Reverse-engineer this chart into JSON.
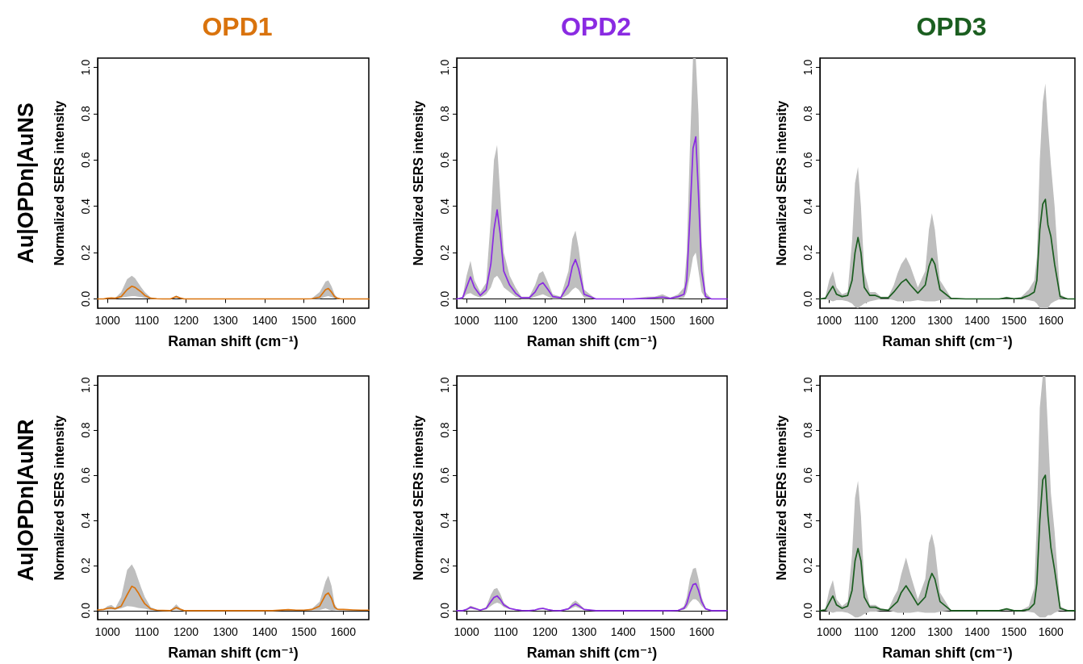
{
  "chart_data": [
    {
      "type": "line",
      "title": "OPD1",
      "xlabel": "Raman shift (cm⁻¹)",
      "ylabel": "Normalized SERS intensity",
      "annotations": [
        "Au|OPDn|AuNS"
      ],
      "xlim": [
        975,
        1665
      ],
      "ylim": [
        -0.04,
        1.04
      ],
      "xticks": [
        1000,
        1100,
        1200,
        1300,
        1400,
        1500,
        1600
      ],
      "yticks": [
        {
          "value": 0,
          "label": "0.0"
        },
        {
          "value": 0.2,
          "label": "0.2"
        },
        {
          "value": 0.4,
          "label": "0.4"
        },
        {
          "value": 0.6,
          "label": "0.6"
        },
        {
          "value": 0.8,
          "label": "0.8"
        },
        {
          "value": 1,
          "label": "1.0"
        }
      ],
      "x": [
        975,
        990,
        1000,
        1010,
        1020,
        1035,
        1050,
        1062,
        1070,
        1078,
        1086,
        1095,
        1110,
        1125,
        1140,
        1160,
        1175,
        1185,
        1195,
        1208,
        1220,
        1240,
        1260,
        1270,
        1278,
        1286,
        1300,
        1330,
        1370,
        1420,
        1460,
        1480,
        1500,
        1520,
        1540,
        1555,
        1562,
        1570,
        1578,
        1585,
        1592,
        1600,
        1610,
        1625,
        1645,
        1665
      ],
      "series": [
        {
          "color": "#d9730d",
          "values": [
            0,
            0,
            0.003,
            0.004,
            0.003,
            0.01,
            0.04,
            0.055,
            0.05,
            0.04,
            0.03,
            0.015,
            0.003,
            0.001,
            0,
            0,
            0.01,
            0.004,
            0,
            0,
            0,
            0,
            0,
            0,
            0,
            0,
            0,
            0,
            0,
            0,
            0,
            0,
            0,
            0.001,
            0.008,
            0.04,
            0.045,
            0.03,
            0.01,
            0.003,
            0.001,
            0,
            0,
            0,
            0,
            0
          ],
          "upper": [
            0,
            0,
            0.004,
            0.006,
            0.004,
            0.03,
            0.085,
            0.1,
            0.09,
            0.07,
            0.05,
            0.03,
            0.006,
            0.002,
            0,
            0,
            0.015,
            0.006,
            0.001,
            0,
            0,
            0,
            0,
            0,
            0,
            0,
            0,
            0,
            0,
            0,
            0,
            0,
            0,
            0.003,
            0.03,
            0.075,
            0.08,
            0.055,
            0.02,
            0.005,
            0.002,
            0,
            0,
            0,
            0,
            0
          ],
          "lower": [
            0,
            0,
            0.002,
            0.002,
            0.002,
            0.005,
            0.01,
            0.012,
            0.012,
            0.01,
            0.008,
            0.004,
            0,
            0,
            0,
            0,
            0.005,
            0.002,
            0,
            0,
            0,
            0,
            0,
            0,
            0,
            0,
            0,
            0,
            0,
            0,
            0,
            0,
            0,
            0,
            0,
            0.01,
            0.012,
            0.008,
            0.003,
            0,
            0,
            0,
            0,
            0,
            0,
            0
          ]
        }
      ]
    },
    {
      "type": "line",
      "title": "OPD2",
      "xlabel": "Raman shift (cm⁻¹)",
      "ylabel": "Normalized SERS intensity",
      "xlim": [
        975,
        1665
      ],
      "ylim": [
        -0.04,
        1.04
      ],
      "xticks": [
        1000,
        1100,
        1200,
        1300,
        1400,
        1500,
        1600
      ],
      "yticks": [
        {
          "value": 0,
          "label": "0.0"
        },
        {
          "value": 0.2,
          "label": "0.2"
        },
        {
          "value": 0.4,
          "label": "0.4"
        },
        {
          "value": 0.6,
          "label": "0.6"
        },
        {
          "value": 0.8,
          "label": "0.8"
        },
        {
          "value": 1,
          "label": "1.0"
        }
      ],
      "x": [
        975,
        990,
        1000,
        1010,
        1020,
        1035,
        1050,
        1062,
        1070,
        1078,
        1086,
        1095,
        1110,
        1125,
        1140,
        1160,
        1175,
        1185,
        1195,
        1208,
        1220,
        1240,
        1260,
        1270,
        1278,
        1286,
        1300,
        1330,
        1370,
        1420,
        1460,
        1480,
        1500,
        1520,
        1540,
        1555,
        1562,
        1570,
        1578,
        1585,
        1592,
        1600,
        1610,
        1625,
        1645,
        1665
      ],
      "series": [
        {
          "color": "#8a2be2",
          "values": [
            0,
            0.005,
            0.05,
            0.095,
            0.05,
            0.015,
            0.04,
            0.15,
            0.3,
            0.385,
            0.28,
            0.12,
            0.06,
            0.025,
            0.005,
            0.005,
            0.03,
            0.06,
            0.07,
            0.04,
            0.01,
            0.005,
            0.06,
            0.14,
            0.17,
            0.13,
            0.02,
            0,
            0,
            0,
            0.002,
            0.005,
            0.008,
            0.002,
            0.01,
            0.02,
            0.08,
            0.35,
            0.65,
            0.7,
            0.45,
            0.12,
            0.01,
            0,
            0,
            0
          ],
          "upper": [
            0,
            0.01,
            0.1,
            0.165,
            0.08,
            0.03,
            0.07,
            0.35,
            0.6,
            0.665,
            0.45,
            0.2,
            0.1,
            0.05,
            0.01,
            0.01,
            0.06,
            0.11,
            0.12,
            0.07,
            0.02,
            0.01,
            0.12,
            0.26,
            0.295,
            0.22,
            0.04,
            0,
            0,
            0,
            0.01,
            0.01,
            0.02,
            0.005,
            0.02,
            0.05,
            0.2,
            0.65,
            1.04,
            1.04,
            0.8,
            0.25,
            0.03,
            0,
            0,
            0
          ],
          "lower": [
            0,
            0,
            0.02,
            0.025,
            0.015,
            0.005,
            0.02,
            0.05,
            0.09,
            0.1,
            0.08,
            0.05,
            0.03,
            0.01,
            0,
            0,
            0.01,
            0.015,
            0.02,
            0.01,
            0,
            0,
            0.02,
            0.04,
            0.05,
            0.04,
            0.005,
            0,
            0,
            0,
            0,
            0,
            0,
            0,
            0,
            0.005,
            0.03,
            0.1,
            0.18,
            0.2,
            0.12,
            0.03,
            0.003,
            0,
            0,
            0
          ]
        }
      ]
    },
    {
      "type": "line",
      "title": "OPD3",
      "xlabel": "Raman shift (cm⁻¹)",
      "ylabel": "Normalized SERS intensity",
      "xlim": [
        975,
        1665
      ],
      "ylim": [
        -0.04,
        1.04
      ],
      "xticks": [
        1000,
        1100,
        1200,
        1300,
        1400,
        1500,
        1600
      ],
      "yticks": [
        {
          "value": 0,
          "label": "0.0"
        },
        {
          "value": 0.2,
          "label": "0.2"
        },
        {
          "value": 0.4,
          "label": "0.4"
        },
        {
          "value": 0.6,
          "label": "0.6"
        },
        {
          "value": 0.8,
          "label": "0.8"
        },
        {
          "value": 1,
          "label": "1.0"
        }
      ],
      "x": [
        975,
        990,
        1000,
        1010,
        1020,
        1035,
        1050,
        1062,
        1070,
        1078,
        1086,
        1095,
        1110,
        1125,
        1140,
        1160,
        1175,
        1185,
        1195,
        1208,
        1220,
        1240,
        1260,
        1270,
        1278,
        1286,
        1300,
        1330,
        1370,
        1420,
        1460,
        1480,
        1500,
        1520,
        1540,
        1555,
        1562,
        1570,
        1578,
        1585,
        1592,
        1600,
        1610,
        1625,
        1645,
        1665
      ],
      "series": [
        {
          "color": "#1b5e20",
          "values": [
            0,
            0.003,
            0.03,
            0.055,
            0.02,
            0.01,
            0.015,
            0.08,
            0.2,
            0.265,
            0.2,
            0.05,
            0.015,
            0.015,
            0.005,
            0.005,
            0.03,
            0.05,
            0.07,
            0.085,
            0.06,
            0.025,
            0.06,
            0.14,
            0.175,
            0.15,
            0.04,
            0.002,
            0,
            0,
            0,
            0.005,
            0.001,
            0.003,
            0.015,
            0.03,
            0.08,
            0.3,
            0.41,
            0.43,
            0.32,
            0.27,
            0.15,
            0.01,
            0,
            0
          ],
          "upper": [
            0,
            0.01,
            0.08,
            0.12,
            0.05,
            0.02,
            0.03,
            0.25,
            0.5,
            0.57,
            0.4,
            0.12,
            0.03,
            0.03,
            0.01,
            0.01,
            0.06,
            0.11,
            0.15,
            0.18,
            0.14,
            0.05,
            0.12,
            0.3,
            0.37,
            0.3,
            0.08,
            0.005,
            0,
            0,
            0,
            0.01,
            0.002,
            0.01,
            0.04,
            0.08,
            0.18,
            0.6,
            0.85,
            0.93,
            0.75,
            0.58,
            0.4,
            0.02,
            0,
            0
          ],
          "lower": [
            0,
            0,
            -0.005,
            -0.01,
            -0.005,
            -0.005,
            -0.01,
            -0.02,
            -0.035,
            -0.04,
            -0.03,
            -0.02,
            -0.01,
            -0.005,
            0,
            0,
            -0.005,
            -0.01,
            -0.01,
            -0.01,
            -0.01,
            -0.005,
            -0.01,
            -0.01,
            -0.01,
            -0.01,
            -0.005,
            0,
            0,
            0,
            0,
            0,
            0,
            0,
            -0.005,
            -0.01,
            -0.02,
            -0.04,
            -0.04,
            -0.04,
            -0.04,
            -0.02,
            -0.01,
            0,
            0,
            0
          ]
        }
      ]
    },
    {
      "type": "line",
      "xlabel": "Raman shift (cm⁻¹)",
      "ylabel": "Normalized SERS intensity",
      "annotations": [
        "Au|OPDn|AuNR"
      ],
      "xlim": [
        975,
        1665
      ],
      "ylim": [
        -0.04,
        1.04
      ],
      "xticks": [
        1000,
        1100,
        1200,
        1300,
        1400,
        1500,
        1600
      ],
      "yticks": [
        {
          "value": 0,
          "label": "0.0"
        },
        {
          "value": 0.2,
          "label": "0.2"
        },
        {
          "value": 0.4,
          "label": "0.4"
        },
        {
          "value": 0.6,
          "label": "0.6"
        },
        {
          "value": 0.8,
          "label": "0.8"
        },
        {
          "value": 1,
          "label": "1.0"
        }
      ],
      "x": [
        975,
        990,
        1000,
        1010,
        1020,
        1035,
        1050,
        1062,
        1070,
        1078,
        1086,
        1095,
        1110,
        1125,
        1140,
        1160,
        1175,
        1185,
        1195,
        1208,
        1220,
        1240,
        1260,
        1270,
        1278,
        1286,
        1300,
        1330,
        1370,
        1420,
        1460,
        1480,
        1500,
        1520,
        1540,
        1555,
        1562,
        1570,
        1578,
        1585,
        1592,
        1600,
        1610,
        1625,
        1645,
        1665
      ],
      "series": [
        {
          "color": "#d9730d",
          "values": [
            0.003,
            0.005,
            0.01,
            0.012,
            0.008,
            0.02,
            0.07,
            0.108,
            0.1,
            0.08,
            0.055,
            0.03,
            0.008,
            0.002,
            0.001,
            0,
            0.014,
            0.006,
            0,
            0,
            0,
            0,
            0,
            0,
            0,
            0,
            0,
            0,
            0,
            0,
            0.004,
            0.002,
            0.002,
            0.005,
            0.02,
            0.07,
            0.078,
            0.055,
            0.015,
            0.006,
            0.005,
            0.005,
            0.004,
            0.003,
            0.002,
            0.002
          ],
          "upper": [
            0.003,
            0.006,
            0.02,
            0.025,
            0.012,
            0.06,
            0.18,
            0.205,
            0.18,
            0.14,
            0.1,
            0.06,
            0.015,
            0.004,
            0.002,
            0.001,
            0.028,
            0.01,
            0.001,
            0,
            0,
            0,
            0,
            0,
            0,
            0,
            0,
            0,
            0,
            0,
            0.006,
            0.003,
            0.003,
            0.008,
            0.04,
            0.13,
            0.155,
            0.11,
            0.03,
            0.008,
            0.006,
            0.006,
            0.005,
            0.004,
            0.003,
            0.003
          ],
          "lower": [
            0.002,
            0.004,
            0.005,
            0.005,
            0.004,
            0.01,
            0.02,
            0.018,
            0.015,
            0.012,
            0.01,
            0.008,
            0.002,
            0,
            0,
            0,
            0.005,
            0.002,
            0,
            0,
            0,
            0,
            0,
            0,
            0,
            0,
            0,
            0,
            0,
            0,
            0.002,
            0.001,
            0.001,
            0.002,
            0.002,
            0.01,
            0.005,
            0,
            0.002,
            0.004,
            0.004,
            0.004,
            0.003,
            0.002,
            0.001,
            0.001
          ]
        }
      ]
    },
    {
      "type": "line",
      "xlabel": "Raman shift (cm⁻¹)",
      "ylabel": "Normalized SERS intensity",
      "xlim": [
        975,
        1665
      ],
      "ylim": [
        -0.04,
        1.04
      ],
      "xticks": [
        1000,
        1100,
        1200,
        1300,
        1400,
        1500,
        1600
      ],
      "yticks": [
        {
          "value": 0,
          "label": "0.0"
        },
        {
          "value": 0.2,
          "label": "0.2"
        },
        {
          "value": 0.4,
          "label": "0.4"
        },
        {
          "value": 0.6,
          "label": "0.6"
        },
        {
          "value": 0.8,
          "label": "0.8"
        },
        {
          "value": 1,
          "label": "1.0"
        }
      ],
      "x": [
        975,
        990,
        1000,
        1010,
        1020,
        1035,
        1050,
        1062,
        1070,
        1078,
        1086,
        1095,
        1110,
        1125,
        1140,
        1160,
        1175,
        1185,
        1195,
        1208,
        1220,
        1240,
        1260,
        1270,
        1278,
        1286,
        1300,
        1330,
        1370,
        1420,
        1460,
        1480,
        1500,
        1520,
        1540,
        1555,
        1562,
        1570,
        1578,
        1585,
        1592,
        1600,
        1610,
        1625,
        1645,
        1665
      ],
      "series": [
        {
          "color": "#8a2be2",
          "values": [
            0,
            0,
            0.005,
            0.015,
            0.01,
            0.002,
            0.01,
            0.04,
            0.058,
            0.065,
            0.05,
            0.025,
            0.01,
            0.004,
            0.001,
            0,
            0.003,
            0.008,
            0.01,
            0.004,
            0.001,
            0,
            0.008,
            0.022,
            0.03,
            0.022,
            0.005,
            0,
            0,
            0,
            0,
            0,
            0,
            0,
            0.001,
            0.01,
            0.03,
            0.08,
            0.115,
            0.12,
            0.09,
            0.04,
            0.008,
            0,
            0,
            0
          ],
          "upper": [
            0,
            0,
            0.008,
            0.022,
            0.015,
            0.004,
            0.015,
            0.07,
            0.095,
            0.1,
            0.075,
            0.035,
            0.013,
            0.005,
            0.002,
            0,
            0.004,
            0.01,
            0.013,
            0.006,
            0.002,
            0,
            0.012,
            0.035,
            0.045,
            0.033,
            0.008,
            0,
            0,
            0,
            0,
            0,
            0,
            0,
            0.002,
            0.02,
            0.06,
            0.14,
            0.185,
            0.19,
            0.14,
            0.06,
            0.012,
            0,
            0,
            0
          ],
          "lower": [
            0,
            0,
            0.002,
            0.008,
            0.005,
            0,
            0.005,
            0.02,
            0.03,
            0.035,
            0.03,
            0.015,
            0.006,
            0.002,
            0,
            0,
            0.001,
            0.005,
            0.006,
            0.002,
            0,
            0,
            0.004,
            0.012,
            0.018,
            0.012,
            0.002,
            0,
            0,
            0,
            0,
            0,
            0,
            0,
            0,
            0.004,
            0.012,
            0.035,
            0.05,
            0.05,
            0.04,
            0.02,
            0.004,
            0,
            0,
            0
          ]
        }
      ]
    },
    {
      "type": "line",
      "xlabel": "Raman shift (cm⁻¹)",
      "ylabel": "Normalized SERS intensity",
      "xlim": [
        975,
        1665
      ],
      "ylim": [
        -0.04,
        1.04
      ],
      "xticks": [
        1000,
        1100,
        1200,
        1300,
        1400,
        1500,
        1600
      ],
      "yticks": [
        {
          "value": 0,
          "label": "0.0"
        },
        {
          "value": 0.2,
          "label": "0.2"
        },
        {
          "value": 0.4,
          "label": "0.4"
        },
        {
          "value": 0.6,
          "label": "0.6"
        },
        {
          "value": 0.8,
          "label": "0.8"
        },
        {
          "value": 1,
          "label": "1.0"
        }
      ],
      "x": [
        975,
        990,
        1000,
        1010,
        1020,
        1035,
        1050,
        1062,
        1070,
        1078,
        1086,
        1095,
        1110,
        1125,
        1140,
        1160,
        1175,
        1185,
        1195,
        1208,
        1220,
        1240,
        1260,
        1270,
        1278,
        1286,
        1300,
        1330,
        1370,
        1420,
        1460,
        1480,
        1500,
        1520,
        1540,
        1555,
        1562,
        1570,
        1578,
        1585,
        1592,
        1600,
        1610,
        1625,
        1645,
        1665
      ],
      "series": [
        {
          "color": "#1b5e20",
          "values": [
            0,
            0.003,
            0.035,
            0.065,
            0.025,
            0.01,
            0.02,
            0.09,
            0.22,
            0.275,
            0.22,
            0.06,
            0.015,
            0.015,
            0.005,
            0.002,
            0.025,
            0.04,
            0.08,
            0.11,
            0.08,
            0.025,
            0.06,
            0.13,
            0.165,
            0.14,
            0.04,
            0,
            0,
            0,
            0,
            0.008,
            0,
            0,
            0.005,
            0.03,
            0.12,
            0.4,
            0.58,
            0.6,
            0.42,
            0.28,
            0.18,
            0.01,
            0,
            0
          ],
          "upper": [
            0,
            0.01,
            0.09,
            0.135,
            0.05,
            0.02,
            0.04,
            0.25,
            0.5,
            0.575,
            0.42,
            0.12,
            0.025,
            0.025,
            0.01,
            0.005,
            0.06,
            0.09,
            0.16,
            0.235,
            0.16,
            0.05,
            0.14,
            0.3,
            0.34,
            0.28,
            0.08,
            0,
            0,
            0,
            0,
            0.01,
            0,
            0.002,
            0.02,
            0.1,
            0.4,
            0.9,
            1.04,
            1.04,
            0.8,
            0.52,
            0.35,
            0.02,
            0,
            0
          ],
          "lower": [
            0,
            0,
            -0.005,
            -0.01,
            -0.005,
            -0.005,
            -0.01,
            -0.02,
            -0.03,
            -0.03,
            -0.025,
            -0.015,
            -0.005,
            -0.005,
            0,
            0,
            -0.005,
            -0.01,
            -0.01,
            -0.01,
            -0.01,
            -0.005,
            -0.01,
            -0.01,
            -0.01,
            -0.01,
            -0.005,
            0,
            0,
            0,
            0,
            0,
            0,
            0,
            -0.005,
            -0.01,
            -0.02,
            -0.03,
            -0.03,
            -0.03,
            -0.02,
            -0.02,
            -0.01,
            0,
            0,
            0
          ]
        }
      ]
    }
  ]
}
